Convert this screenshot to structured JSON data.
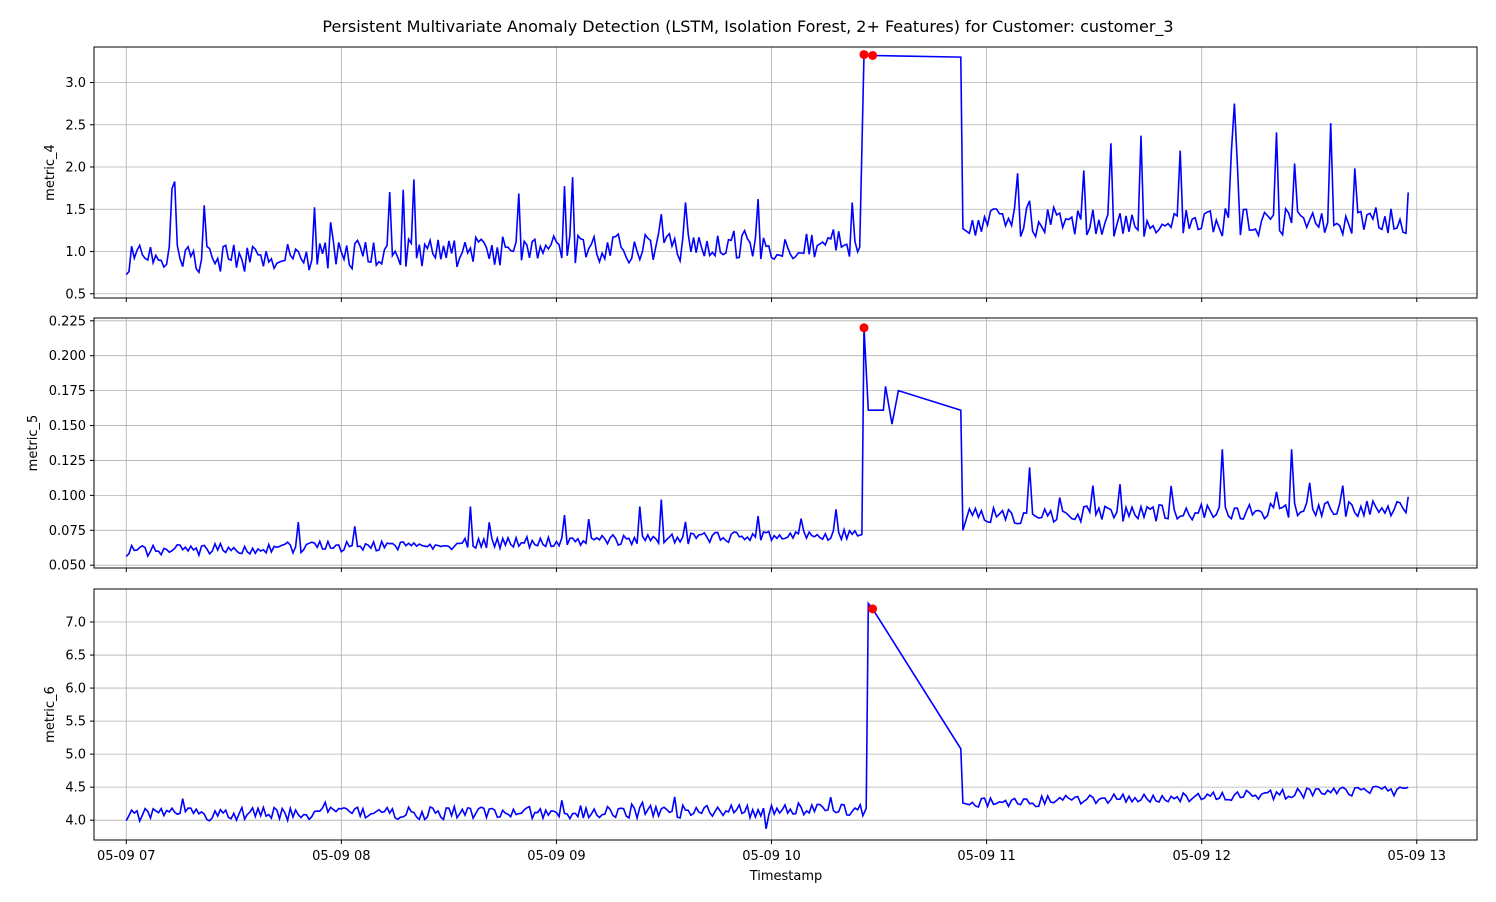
{
  "chart_data": {
    "type": "line",
    "title": "Persistent Multivariate Anomaly Detection (LSTM, Isolation Forest, 2+ Features) for Customer: customer_3",
    "xlabel": "Timestamp",
    "xlim": [
      6.85,
      13.28
    ],
    "x_ticks": [
      7,
      8,
      9,
      10,
      11,
      12,
      13
    ],
    "x_tick_labels": [
      "05-09 07",
      "05-09 08",
      "05-09 09",
      "05-09 10",
      "05-09 11",
      "05-09 12",
      "05-09 13"
    ],
    "grid": true,
    "line_color": "#0000ff",
    "anomaly_color": "#ff0000",
    "panels": [
      {
        "ylabel": "metric_4",
        "ylim": [
          0.45,
          3.42
        ],
        "yticks": [
          0.5,
          1.0,
          1.5,
          2.0,
          2.5,
          3.0
        ],
        "ytick_labels": [
          "0.5",
          "1.0",
          "1.5",
          "2.0",
          "2.5",
          "3.0"
        ],
        "series": [
          {
            "values": [
              [
                7.0,
                0.97
              ],
              [
                7.05,
                0.93
              ],
              [
                7.1,
                1.0
              ],
              [
                7.15,
                0.88
              ],
              [
                7.2,
                0.92
              ],
              [
                7.25,
                0.78
              ],
              [
                7.3,
                1.0
              ],
              [
                7.35,
                1.18
              ],
              [
                7.4,
                1.3
              ],
              [
                7.45,
                1.06
              ],
              [
                7.5,
                1.13
              ],
              [
                7.55,
                0.93
              ],
              [
                7.6,
                1.08
              ],
              [
                7.65,
                0.9
              ],
              [
                7.7,
                1.04
              ],
              [
                7.75,
                0.88
              ],
              [
                7.8,
                0.99
              ],
              [
                7.85,
                0.72
              ],
              [
                7.9,
                1.05
              ],
              [
                7.95,
                1.2
              ],
              [
                8.0,
                0.94
              ],
              [
                8.05,
                0.91
              ],
              [
                8.1,
                0.86
              ],
              [
                8.15,
                1.17
              ],
              [
                8.2,
                0.77
              ],
              [
                8.25,
                0.91
              ],
              [
                8.3,
                0.75
              ],
              [
                8.35,
                0.82
              ],
              [
                8.4,
                0.81
              ],
              [
                8.45,
                0.98
              ],
              [
                8.5,
                0.86
              ],
              [
                8.55,
                0.74
              ],
              [
                8.6,
                1.2
              ],
              [
                8.65,
                0.89
              ],
              [
                8.7,
                0.82
              ],
              [
                8.75,
                0.86
              ],
              [
                8.8,
                0.78
              ],
              [
                8.85,
                0.75
              ],
              [
                8.9,
                0.87
              ],
              [
                8.95,
                0.79
              ],
              [
                9.0,
                0.85
              ],
              [
                9.05,
                1.88
              ],
              [
                9.1,
                0.83
              ],
              [
                9.15,
                0.98
              ],
              [
                9.2,
                0.78
              ],
              [
                9.25,
                1.11
              ],
              [
                9.3,
                1.3
              ],
              [
                9.35,
                0.85
              ],
              [
                9.4,
                1.0
              ],
              [
                9.45,
                1.58
              ],
              [
                9.5,
                0.94
              ],
              [
                9.55,
                0.75
              ],
              [
                9.6,
                1.09
              ],
              [
                9.65,
                0.9
              ],
              [
                9.7,
                0.84
              ],
              [
                9.75,
                0.82
              ],
              [
                9.8,
                0.73
              ],
              [
                9.85,
                0.86
              ],
              [
                9.9,
                0.8
              ],
              [
                9.95,
                0.88
              ],
              [
                10.0,
                0.96
              ],
              [
                10.05,
                0.7
              ],
              [
                10.1,
                0.76
              ],
              [
                10.15,
                0.89
              ],
              [
                10.2,
                1.15
              ],
              [
                10.25,
                0.85
              ],
              [
                10.3,
                0.9
              ],
              [
                10.35,
                0.95
              ],
              [
                10.4,
                1.02
              ],
              [
                10.45,
                0.72
              ],
              [
                10.5,
                0.97
              ],
              [
                10.55,
                0.76
              ],
              [
                10.6,
                1.03
              ],
              [
                10.65,
                0.8
              ],
              [
                10.7,
                0.85
              ],
              [
                10.75,
                0.58
              ],
              [
                10.8,
                1.01
              ],
              [
                10.85,
                1.13
              ],
              [
                10.9,
                0.72
              ],
              [
                10.95,
                1.02
              ],
              [
                11.0,
                1.43
              ],
              [
                11.05,
                0.97
              ],
              [
                11.1,
                1.12
              ],
              [
                11.15,
                0.85
              ],
              [
                11.2,
                0.93
              ],
              [
                11.25,
                0.88
              ],
              [
                11.3,
                0.77
              ],
              [
                11.35,
                0.98
              ],
              [
                11.4,
                0.93
              ],
              [
                11.45,
                1.0
              ],
              [
                11.5,
                1.03
              ],
              [
                11.55,
                0.88
              ],
              [
                11.6,
                1.21
              ],
              [
                11.65,
                1.25
              ],
              [
                11.7,
                0.96
              ],
              [
                11.75,
                1.22
              ],
              [
                11.8,
                1.1
              ],
              [
                11.85,
                1.3
              ],
              [
                11.9,
                1.4
              ],
              [
                11.95,
                0.83
              ],
              [
                12.0,
                1.33
              ],
              [
                12.05,
                1.18
              ],
              [
                12.1,
                1.4
              ],
              [
                12.15,
                1.58
              ],
              [
                12.2,
                1.13
              ],
              [
                12.25,
                1.3
              ],
              [
                12.3,
                1.17
              ],
              [
                12.35,
                1.4
              ],
              [
                12.4,
                1.05
              ],
              [
                12.45,
                1.45
              ],
              [
                10.41,
                1.05
              ],
              [
                10.43,
                3.33
              ],
              [
                10.46,
                3.32
              ],
              [
                10.88,
                3.3
              ],
              [
                10.89,
                1.27
              ],
              [
                10.9,
                1.7
              ],
              [
                10.93,
                1.17
              ]
            ],
            "note": ""
          },
          {
            "values": [
              [
                10.95,
                1.5
              ],
              [
                11.0,
                1.18
              ],
              [
                11.05,
                1.95
              ],
              [
                11.1,
                1.35
              ],
              [
                11.15,
                1.3
              ],
              [
                11.2,
                1.38
              ],
              [
                11.25,
                1.52
              ],
              [
                11.3,
                1.25
              ],
              [
                11.35,
                1.95
              ],
              [
                11.4,
                1.26
              ],
              [
                11.45,
                1.3
              ],
              [
                11.5,
                1.23
              ],
              [
                11.55,
                2.28
              ],
              [
                11.6,
                1.27
              ],
              [
                11.65,
                1.25
              ],
              [
                11.7,
                1.45
              ],
              [
                11.75,
                2.37
              ],
              [
                11.8,
                1.1
              ],
              [
                11.85,
                1.65
              ],
              [
                11.9,
                1.25
              ],
              [
                11.95,
                1.3
              ],
              [
                12.0,
                1.32
              ],
              [
                12.05,
                1.3
              ],
              [
                12.1,
                1.1
              ],
              [
                12.15,
                1.5
              ],
              [
                12.2,
                2.75
              ],
              [
                12.25,
                1.3
              ],
              [
                12.3,
                1.27
              ],
              [
                12.35,
                1.9
              ],
              [
                12.4,
                1.45
              ],
              [
                12.45,
                1.35
              ],
              [
                12.5,
                1.5
              ],
              [
                12.55,
                1.22
              ],
              [
                12.6,
                2.05
              ],
              [
                12.65,
                1.5
              ],
              [
                12.7,
                1.45
              ],
              [
                12.75,
                1.62
              ],
              [
                12.8,
                1.28
              ],
              [
                12.85,
                1.9
              ],
              [
                12.9,
                1.65
              ],
              [
                12.95,
                2.52
              ],
              [
                13.0,
                1.3
              ],
              [
                13.05,
                1.6
              ],
              [
                13.1,
                1.45
              ],
              [
                13.15,
                1.68
              ],
              [
                13.2,
                1.4
              ],
              [
                13.25,
                1.62
              ],
              [
                13.3,
                1.7
              ]
            ],
            "note": ""
          }
        ],
        "anomalies": [
          [
            10.43,
            3.33
          ],
          [
            10.47,
            3.32
          ]
        ]
      },
      {
        "ylabel": "metric_5",
        "ylim": [
          0.048,
          0.227
        ],
        "yticks": [
          0.05,
          0.075,
          0.1,
          0.125,
          0.15,
          0.175,
          0.2,
          0.225
        ],
        "ytick_labels": [
          "0.050",
          "0.075",
          "0.100",
          "0.125",
          "0.150",
          "0.175",
          "0.200",
          "0.225"
        ],
        "series": [],
        "anomalies": [
          [
            10.43,
            0.22
          ]
        ]
      },
      {
        "ylabel": "metric_6",
        "ylim": [
          3.7,
          7.5
        ],
        "yticks": [
          4.0,
          4.5,
          5.0,
          5.5,
          6.0,
          6.5,
          7.0
        ],
        "ytick_labels": [
          "4.0",
          "4.5",
          "5.0",
          "5.5",
          "6.0",
          "6.5",
          "7.0"
        ],
        "series": [],
        "anomalies": [
          [
            10.47,
            7.2
          ]
        ]
      }
    ]
  }
}
